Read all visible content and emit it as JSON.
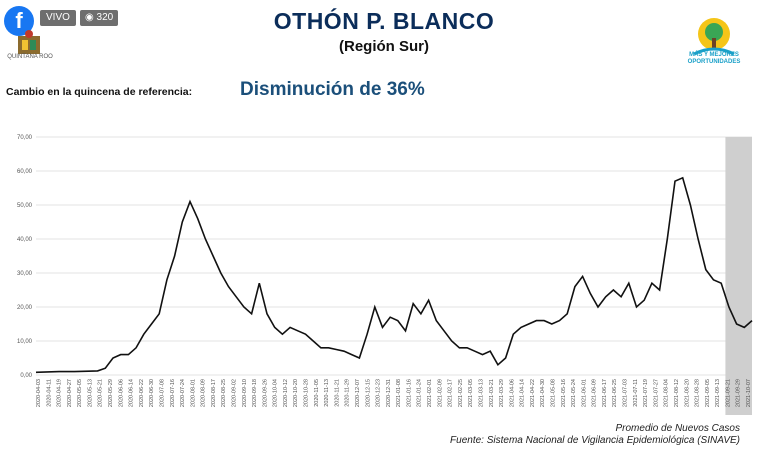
{
  "header": {
    "title": "OTHÓN P. BLANCO",
    "subtitle": "(Región Sur)",
    "change_label": "Cambio en la quincena de referencia:",
    "change_value": "Disminución de 36%"
  },
  "overlay": {
    "facebook_icon": "f",
    "live_label": "VIVO",
    "viewers_count": "320"
  },
  "logos": {
    "state_name": "QUINTANA ROO",
    "right_logo_text": "MÁS Y MEJORES OPORTUNIDADES"
  },
  "footer": {
    "line1": "Promedio de Nuevos Casos",
    "line2": "Fuente: Sistema Nacional de Vigilancia Epidemiológica (SINAVE)"
  },
  "colors": {
    "title": "#0b2d5a",
    "change_value": "#1b4f7a",
    "line": "#111111",
    "shade": "#cfcfcf"
  },
  "chart_data": {
    "type": "line",
    "ylim": [
      0,
      70
    ],
    "yticks": [
      "0,00",
      "10,00",
      "20,00",
      "30,00",
      "40,00",
      "50,00",
      "60,00",
      "70,00"
    ],
    "xticks": [
      "2020-04-03",
      "2020-04-11",
      "2020-04-19",
      "2020-04-27",
      "2020-05-05",
      "2020-05-13",
      "2020-05-21",
      "2020-05-29",
      "2020-06-06",
      "2020-06-14",
      "2020-06-22",
      "2020-06-30",
      "2020-07-08",
      "2020-07-16",
      "2020-07-24",
      "2020-08-01",
      "2020-08-09",
      "2020-08-17",
      "2020-08-25",
      "2020-09-02",
      "2020-09-10",
      "2020-09-18",
      "2020-09-26",
      "2020-10-04",
      "2020-10-12",
      "2020-10-20",
      "2020-10-28",
      "2020-11-05",
      "2020-11-13",
      "2020-11-21",
      "2020-11-29",
      "2020-12-07",
      "2020-12-15",
      "2020-12-23",
      "2020-12-31",
      "2021-01-08",
      "2021-01-16",
      "2021-01-24",
      "2021-02-01",
      "2021-02-09",
      "2021-02-17",
      "2021-02-25",
      "2021-03-05",
      "2021-03-13",
      "2021-03-21",
      "2021-03-29",
      "2021-04-06",
      "2021-04-14",
      "2021-04-22",
      "2021-04-30",
      "2021-05-08",
      "2021-05-16",
      "2021-05-24",
      "2021-06-01",
      "2021-06-09",
      "2021-06-17",
      "2021-06-25",
      "2021-07-03",
      "2021-07-11",
      "2021-07-19",
      "2021-07-27",
      "2021-08-04",
      "2021-08-12",
      "2021-08-20",
      "2021-08-28",
      "2021-09-05",
      "2021-09-13",
      "2021-09-21",
      "2021-09-29",
      "2021-10-07"
    ],
    "series_points": [
      [
        0,
        0.8
      ],
      [
        3,
        1
      ],
      [
        5,
        1
      ],
      [
        8,
        1.2
      ],
      [
        9,
        2
      ],
      [
        10,
        5
      ],
      [
        11,
        6
      ],
      [
        12,
        6
      ],
      [
        13,
        8
      ],
      [
        14,
        12
      ],
      [
        15,
        15
      ],
      [
        16,
        18
      ],
      [
        17,
        28
      ],
      [
        18,
        35
      ],
      [
        19,
        45
      ],
      [
        20,
        51
      ],
      [
        21,
        46
      ],
      [
        22,
        40
      ],
      [
        23,
        35
      ],
      [
        24,
        30
      ],
      [
        25,
        26
      ],
      [
        26,
        23
      ],
      [
        27,
        20
      ],
      [
        28,
        18
      ],
      [
        29,
        27
      ],
      [
        30,
        18
      ],
      [
        31,
        14
      ],
      [
        32,
        12
      ],
      [
        33,
        14
      ],
      [
        34,
        13
      ],
      [
        35,
        12
      ],
      [
        36,
        10
      ],
      [
        37,
        8
      ],
      [
        38,
        8
      ],
      [
        39,
        7.5
      ],
      [
        40,
        7
      ],
      [
        41,
        6
      ],
      [
        42,
        5
      ],
      [
        43,
        12
      ],
      [
        44,
        20
      ],
      [
        45,
        14
      ],
      [
        46,
        17
      ],
      [
        47,
        16
      ],
      [
        48,
        13
      ],
      [
        49,
        21
      ],
      [
        50,
        18
      ],
      [
        51,
        22
      ],
      [
        52,
        16
      ],
      [
        53,
        13
      ],
      [
        54,
        10
      ],
      [
        55,
        8
      ],
      [
        56,
        8
      ],
      [
        57,
        7
      ],
      [
        58,
        6
      ],
      [
        59,
        7
      ],
      [
        60,
        3
      ],
      [
        61,
        5
      ],
      [
        62,
        12
      ],
      [
        63,
        14
      ],
      [
        64,
        15
      ],
      [
        65,
        16
      ],
      [
        66,
        16
      ],
      [
        67,
        15
      ],
      [
        68,
        16
      ],
      [
        69,
        18
      ],
      [
        70,
        26
      ],
      [
        71,
        29
      ],
      [
        72,
        24
      ],
      [
        73,
        20
      ],
      [
        74,
        23
      ],
      [
        75,
        25
      ],
      [
        76,
        23
      ],
      [
        77,
        27
      ],
      [
        78,
        20
      ],
      [
        79,
        22
      ],
      [
        80,
        27
      ],
      [
        81,
        25
      ],
      [
        82,
        40
      ],
      [
        83,
        57
      ],
      [
        84,
        58
      ],
      [
        85,
        50
      ],
      [
        86,
        40
      ],
      [
        87,
        31
      ],
      [
        88,
        28
      ],
      [
        89,
        27
      ],
      [
        90,
        20
      ],
      [
        91,
        15
      ],
      [
        92,
        14
      ],
      [
        93,
        16
      ]
    ],
    "x_domain": [
      0,
      93
    ],
    "shaded_region_from_label": "2021-09-21",
    "legend": "none",
    "grid": true
  }
}
